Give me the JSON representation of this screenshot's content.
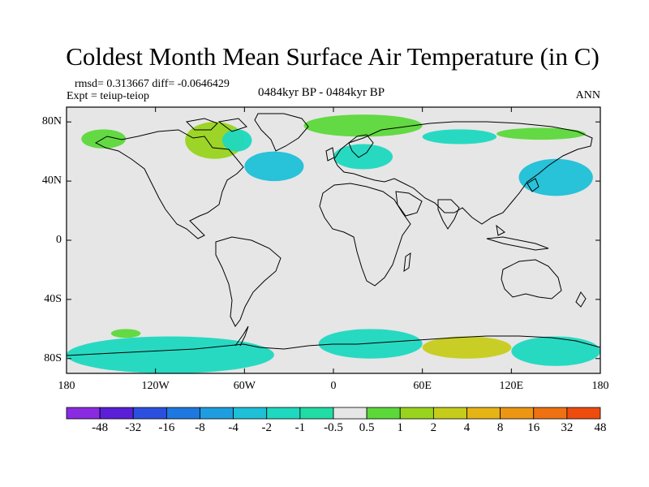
{
  "title": "Coldest Month Mean Surface Air Temperature (in C)",
  "stats": "rmsd= 0.313667 diff= -0.0646429",
  "experiment": "Expt = teiup-teiop",
  "period": "0484kyr BP - 0484kyr BP",
  "season": "ANN",
  "lat_ticks": [
    {
      "label": "80N",
      "lat": 80
    },
    {
      "label": "40N",
      "lat": 40
    },
    {
      "label": "0",
      "lat": 0
    },
    {
      "label": "40S",
      "lat": -40
    },
    {
      "label": "80S",
      "lat": -80
    }
  ],
  "lon_ticks": [
    {
      "label": "180",
      "lon": -180
    },
    {
      "label": "120W",
      "lon": -120
    },
    {
      "label": "60W",
      "lon": -60
    },
    {
      "label": "0",
      "lon": 0
    },
    {
      "label": "60E",
      "lon": 60
    },
    {
      "label": "120E",
      "lon": 120
    },
    {
      "label": "180",
      "lon": 180
    }
  ],
  "colorbar": {
    "colors": [
      "#8a2be2",
      "#5a1fd6",
      "#2b50e0",
      "#1e78e0",
      "#1e9ee0",
      "#1ec0d8",
      "#1ed8c0",
      "#22dca6",
      "#e6e6e6",
      "#5cd83a",
      "#98d41e",
      "#c6cc1a",
      "#e6b414",
      "#ec9614",
      "#ee7212",
      "#ee4c0e"
    ],
    "labels": [
      "-48",
      "-32",
      "-16",
      "-8",
      "-4",
      "-2",
      "-1",
      "-0.5",
      "0.5",
      "1",
      "2",
      "4",
      "8",
      "16",
      "32",
      "48"
    ]
  },
  "chart_data": {
    "type": "map",
    "variable": "Coldest Month Mean Surface Air Temperature difference",
    "units": "C",
    "lon_range": [
      -180,
      180
    ],
    "lat_range": [
      -90,
      90
    ],
    "background_value_range": [
      -0.5,
      0.5
    ],
    "anomaly_regions": [
      {
        "region": "Arctic Canada / Hudson Bay",
        "category": "1 to 2",
        "sign": "positive",
        "lon": [
          -100,
          -60
        ],
        "lat": [
          55,
          80
        ]
      },
      {
        "region": "Alaska / Chukchi",
        "category": "0.5 to 1",
        "sign": "positive",
        "lon": [
          -170,
          -140
        ],
        "lat": [
          62,
          75
        ]
      },
      {
        "region": "Baffin / Greenland coast",
        "category": "-1 to -0.5",
        "sign": "negative",
        "lon": [
          -75,
          -55
        ],
        "lat": [
          60,
          75
        ]
      },
      {
        "region": "Northwest Atlantic / Labrador Sea",
        "category": "-2 to -1",
        "sign": "negative",
        "lon": [
          -60,
          -20
        ],
        "lat": [
          40,
          60
        ]
      },
      {
        "region": "Greenland / Norwegian Sea",
        "category": "0.5 to 2",
        "sign": "positive",
        "lon": [
          -20,
          60
        ],
        "lat": [
          70,
          85
        ]
      },
      {
        "region": "Northern Europe",
        "category": "-1 to -0.5",
        "sign": "negative",
        "lon": [
          0,
          40
        ],
        "lat": [
          48,
          65
        ]
      },
      {
        "region": "Northern Siberia",
        "category": "-1 to -0.5",
        "sign": "negative",
        "lon": [
          60,
          110
        ],
        "lat": [
          65,
          75
        ]
      },
      {
        "region": "Northeast Siberia",
        "category": "0.5 to 1",
        "sign": "positive",
        "lon": [
          110,
          170
        ],
        "lat": [
          68,
          76
        ]
      },
      {
        "region": "Northwest Pacific / Sea of Japan",
        "category": "-2 to -1",
        "sign": "negative",
        "lon": [
          125,
          175
        ],
        "lat": [
          30,
          55
        ]
      },
      {
        "region": "South Pacific sea ice edge",
        "category": "0.5 to 1",
        "sign": "positive",
        "lon": [
          -150,
          -130
        ],
        "lat": [
          -66,
          -60
        ]
      },
      {
        "region": "Antarctic margin west",
        "category": "-1 to -0.5",
        "sign": "negative",
        "lon": [
          -180,
          -40
        ],
        "lat": [
          -90,
          -65
        ]
      },
      {
        "region": "Antarctic margin central",
        "category": "-1 to -0.5",
        "sign": "negative",
        "lon": [
          -10,
          60
        ],
        "lat": [
          -80,
          -60
        ]
      },
      {
        "region": "East Antarctica coast",
        "category": "1 to 4",
        "sign": "positive",
        "lon": [
          60,
          120
        ],
        "lat": [
          -80,
          -65
        ]
      },
      {
        "region": "Ross Sea / Pacific sector",
        "category": "-1 to -0.5",
        "sign": "negative",
        "lon": [
          120,
          180
        ],
        "lat": [
          -85,
          -65
        ]
      }
    ]
  }
}
